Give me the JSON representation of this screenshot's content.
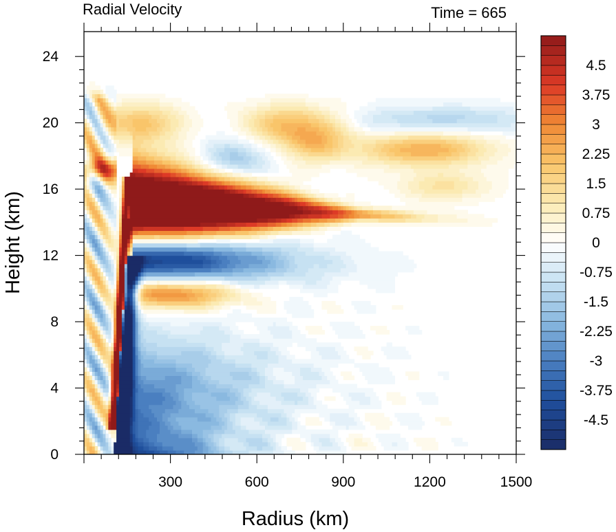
{
  "chart_data": {
    "type": "heatmap",
    "title_left": "Radial Velocity",
    "title_right": "Time = 665",
    "xlabel": "Radius (km)",
    "ylabel": "Height (km)",
    "xlim": [
      0,
      1500
    ],
    "ylim": [
      0,
      25.5
    ],
    "xticks": [
      300,
      600,
      900,
      1200,
      1500
    ],
    "yticks": [
      0,
      4,
      8,
      12,
      16,
      20,
      24
    ],
    "colorbar": {
      "min": -5.25,
      "max": 5.25,
      "step": 0.25,
      "labels": [
        "4.5",
        "3.75",
        "3",
        "2.25",
        "1.5",
        "0.75",
        "0",
        "-0.75",
        "-1.5",
        "-2.25",
        "-3",
        "-3.75",
        "-4.5"
      ],
      "label_values": [
        4.5,
        3.75,
        3,
        2.25,
        1.5,
        0.75,
        0,
        -0.75,
        -1.5,
        -2.25,
        -3,
        -3.75,
        -4.5
      ],
      "stops": [
        {
          "v": -5.25,
          "color": "#1a2b66"
        },
        {
          "v": -4.0,
          "color": "#1f4f9c"
        },
        {
          "v": -3.0,
          "color": "#4a7fc0"
        },
        {
          "v": -2.0,
          "color": "#8ab9e0"
        },
        {
          "v": -1.0,
          "color": "#c6e1f2"
        },
        {
          "v": 0.0,
          "color": "#ffffff"
        },
        {
          "v": 1.0,
          "color": "#fbeab2"
        },
        {
          "v": 2.0,
          "color": "#f9c56a"
        },
        {
          "v": 3.0,
          "color": "#f08a35"
        },
        {
          "v": 4.0,
          "color": "#dd3a26"
        },
        {
          "v": 5.25,
          "color": "#8f1a1a"
        }
      ]
    },
    "features": [
      {
        "label": "upper-level outflow jet",
        "x0": 130,
        "x1": 1050,
        "z_center": 15.2,
        "peak": 6.0
      },
      {
        "label": "inflow below outflow",
        "x0": 150,
        "x1": 750,
        "z_center": 11.8,
        "peak": -4.5
      },
      {
        "label": "eyewall outflow",
        "x_range": [
          100,
          160
        ],
        "z_range": [
          2,
          16
        ],
        "peak": 6.0
      },
      {
        "label": "boundary layer inflow",
        "x_range": [
          100,
          600
        ],
        "z_range": [
          0,
          6
        ],
        "peak": -5.0
      },
      {
        "label": "mid-level outflow",
        "x_range": [
          180,
          500
        ],
        "z_center": 9.7,
        "peak": 3.0
      },
      {
        "label": "upper-level bands",
        "z_range": [
          17,
          21
        ],
        "peak": 2.5
      }
    ]
  }
}
